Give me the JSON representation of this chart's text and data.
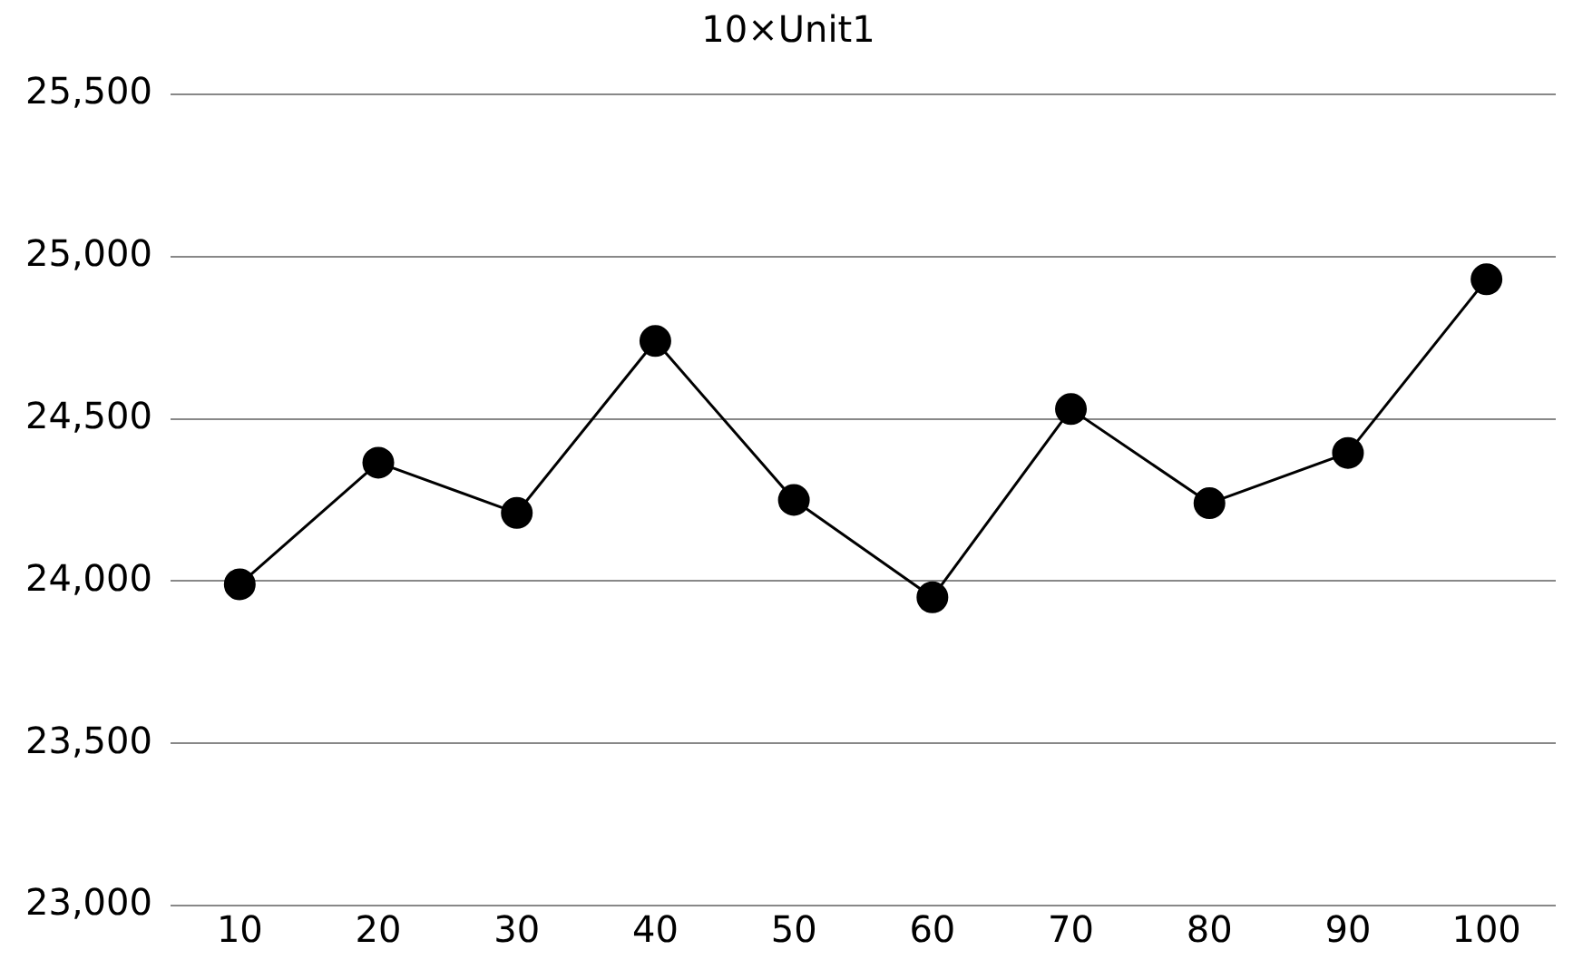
{
  "chart_data": {
    "type": "line",
    "title": "10×Unit1",
    "categories": [
      "10",
      "20",
      "30",
      "40",
      "50",
      "60",
      "70",
      "80",
      "90",
      "100"
    ],
    "series": [
      {
        "color": "#000000",
        "values": [
          23990,
          24365,
          24210,
          24740,
          24250,
          23950,
          24530,
          24240,
          24395,
          24930
        ]
      }
    ],
    "ylim": [
      23000,
      25500
    ],
    "yticks": [
      {
        "value": 23000,
        "label": "23,000"
      },
      {
        "value": 23500,
        "label": "23,500"
      },
      {
        "value": 24000,
        "label": "24,000"
      },
      {
        "value": 24500,
        "label": "24,500"
      },
      {
        "value": 25000,
        "label": "25,000"
      },
      {
        "value": 25500,
        "label": "25,500"
      }
    ],
    "grid": "y",
    "marker": "circle",
    "line_style": "solid",
    "legend": false
  }
}
